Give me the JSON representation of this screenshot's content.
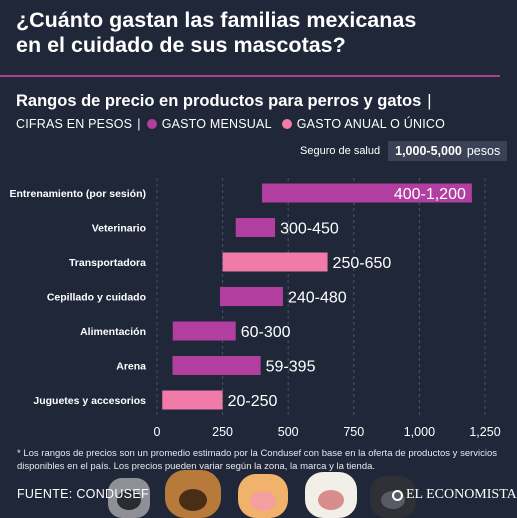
{
  "title": {
    "line1": "¿Cuánto gastan las familias mexicanas",
    "line2": "en el cuidado de sus mascotas?"
  },
  "subtitle": "Rangos de precio en productos para perros y gatos",
  "subtitle_sep": "|",
  "legend": {
    "prefix": "CIFRAS EN PESOS",
    "sep": "|",
    "monthly": "GASTO MENSUAL",
    "annual": "GASTO ANUAL O ÚNICO"
  },
  "insurance": {
    "label": "Seguro de salud",
    "range": "1,000-5,000",
    "unit": "pesos"
  },
  "colors": {
    "background": "#1f2739",
    "monthly": "#b23fa0",
    "annual": "#f07aa8",
    "divider": "#b03a96"
  },
  "chart_data": {
    "type": "bar",
    "orientation": "horizontal-range",
    "xlim": [
      0,
      1250
    ],
    "xticks": [
      0,
      250,
      500,
      750,
      1000,
      1250
    ],
    "xtick_labels": [
      "0",
      "250",
      "500",
      "750",
      "1,000",
      "1,250"
    ],
    "legend": [
      "GASTO MENSUAL",
      "GASTO ANUAL O ÚNICO"
    ],
    "bars": [
      {
        "category": "Entrenamiento (por sesión)",
        "low": 400,
        "high": 1200,
        "label": "400-1,200",
        "series": "monthly"
      },
      {
        "category": "Veterinario",
        "low": 300,
        "high": 450,
        "label": "300-450",
        "series": "monthly"
      },
      {
        "category": "Transportadora",
        "low": 250,
        "high": 650,
        "label": "250-650",
        "series": "annual"
      },
      {
        "category": "Cepillado y cuidado",
        "low": 240,
        "high": 480,
        "label": "240-480",
        "series": "monthly"
      },
      {
        "category": "Alimentación",
        "low": 60,
        "high": 300,
        "label": "60-300",
        "series": "monthly"
      },
      {
        "category": "Arena",
        "low": 59,
        "high": 395,
        "label": "59-395",
        "series": "monthly"
      },
      {
        "category": "Juguetes y accesorios",
        "low": 20,
        "high": 250,
        "label": "20-250",
        "series": "annual"
      }
    ]
  },
  "footnote": "* Los rangos de precios son un promedio estimado por la Condusef con base en la oferta de productos y servicios disponibles en el país. Los precios pueden variar según la zona, la marca y la tienda.",
  "source": "FUENTE: CONDUSEF",
  "brand": "EL ECONOMISTA"
}
